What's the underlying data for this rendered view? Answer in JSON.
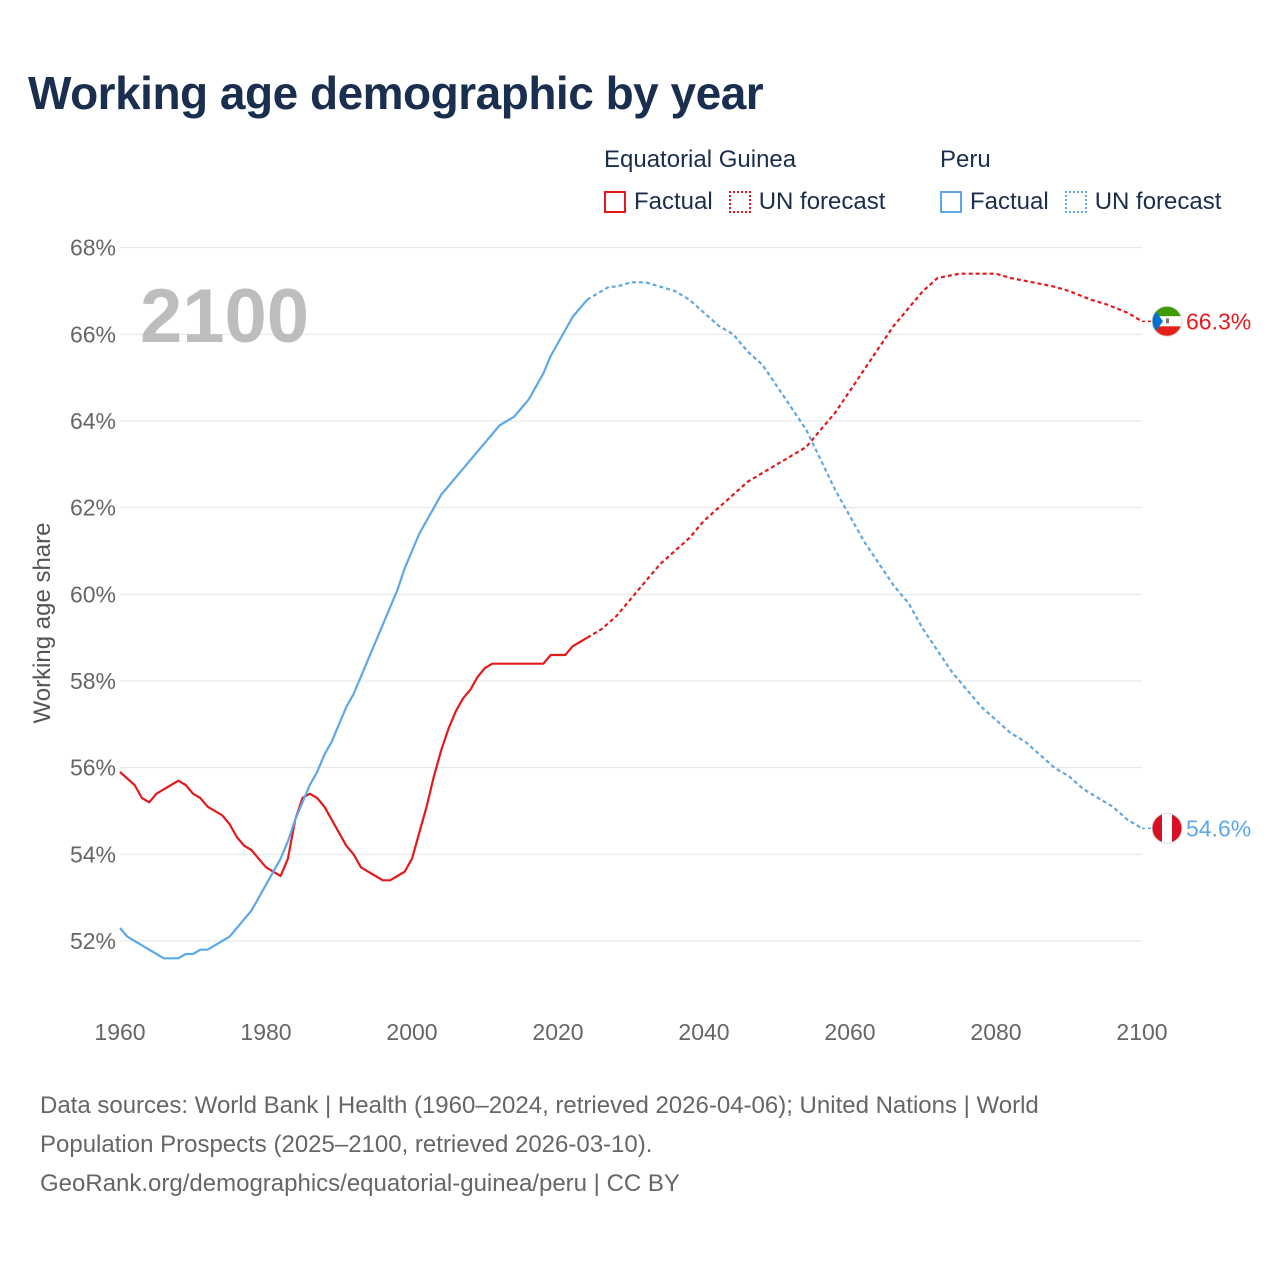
{
  "title": "Working age demographic by year",
  "legend": {
    "groups": [
      {
        "name": "Equatorial Guinea",
        "factual": "Factual",
        "forecast": "UN forecast",
        "color": "#e31a1c"
      },
      {
        "name": "Peru",
        "factual": "Factual",
        "forecast": "UN forecast",
        "color": "#5ea8e8"
      }
    ]
  },
  "footer": {
    "line1": "Data sources: World Bank | Health (1960–2024, retrieved 2026-04-06); United Nations | World",
    "line2": "Population Prospects (2025–2100, retrieved 2026-03-10).",
    "line3": "GeoRank.org/demographics/equatorial-guinea/peru | CC BY"
  },
  "chart_data": {
    "type": "line",
    "title": "Working age demographic by year",
    "xlabel": "",
    "ylabel": "Working age share",
    "xlim": [
      1960,
      2100
    ],
    "ylim": [
      50.5,
      68.5
    ],
    "x_ticks": [
      1960,
      1980,
      2000,
      2020,
      2040,
      2060,
      2080,
      2100
    ],
    "x_tick_labels": [
      "1960",
      "1980",
      "2000",
      "2020",
      "2040",
      "2060",
      "2080",
      "2100"
    ],
    "y_ticks": [
      52,
      54,
      56,
      58,
      60,
      62,
      64,
      66,
      68
    ],
    "y_tick_labels": [
      "52%",
      "54%",
      "56%",
      "58%",
      "60%",
      "62%",
      "64%",
      "66%",
      "68%"
    ],
    "grid": true,
    "current_year_label": "2100",
    "factual_end_year": 2024,
    "series": [
      {
        "name": "Equatorial Guinea",
        "color": "#e31a1c",
        "end_label": "66.3%",
        "flag": "equatorial-guinea-flag",
        "points": [
          [
            1960,
            55.9
          ],
          [
            1962,
            55.6
          ],
          [
            1963,
            55.3
          ],
          [
            1964,
            55.2
          ],
          [
            1965,
            55.4
          ],
          [
            1966,
            55.5
          ],
          [
            1967,
            55.6
          ],
          [
            1968,
            55.7
          ],
          [
            1969,
            55.6
          ],
          [
            1970,
            55.4
          ],
          [
            1971,
            55.3
          ],
          [
            1972,
            55.1
          ],
          [
            1974,
            54.9
          ],
          [
            1975,
            54.7
          ],
          [
            1976,
            54.4
          ],
          [
            1977,
            54.2
          ],
          [
            1978,
            54.1
          ],
          [
            1979,
            53.9
          ],
          [
            1980,
            53.7
          ],
          [
            1981,
            53.6
          ],
          [
            1982,
            53.5
          ],
          [
            1983,
            53.9
          ],
          [
            1984,
            54.8
          ],
          [
            1985,
            55.3
          ],
          [
            1986,
            55.4
          ],
          [
            1987,
            55.3
          ],
          [
            1988,
            55.1
          ],
          [
            1989,
            54.8
          ],
          [
            1990,
            54.5
          ],
          [
            1991,
            54.2
          ],
          [
            1992,
            54.0
          ],
          [
            1993,
            53.7
          ],
          [
            1994,
            53.6
          ],
          [
            1995,
            53.5
          ],
          [
            1996,
            53.4
          ],
          [
            1997,
            53.4
          ],
          [
            1998,
            53.5
          ],
          [
            1999,
            53.6
          ],
          [
            2000,
            53.9
          ],
          [
            2001,
            54.5
          ],
          [
            2002,
            55.1
          ],
          [
            2003,
            55.8
          ],
          [
            2004,
            56.4
          ],
          [
            2005,
            56.9
          ],
          [
            2006,
            57.3
          ],
          [
            2007,
            57.6
          ],
          [
            2008,
            57.8
          ],
          [
            2009,
            58.1
          ],
          [
            2010,
            58.3
          ],
          [
            2011,
            58.4
          ],
          [
            2012,
            58.4
          ],
          [
            2013,
            58.4
          ],
          [
            2014,
            58.4
          ],
          [
            2015,
            58.4
          ],
          [
            2016,
            58.4
          ],
          [
            2017,
            58.4
          ],
          [
            2018,
            58.4
          ],
          [
            2019,
            58.6
          ],
          [
            2020,
            58.6
          ],
          [
            2021,
            58.6
          ],
          [
            2022,
            58.8
          ],
          [
            2023,
            58.9
          ],
          [
            2024,
            59.0
          ],
          [
            2025,
            59.1
          ],
          [
            2026,
            59.2
          ],
          [
            2028,
            59.5
          ],
          [
            2030,
            59.9
          ],
          [
            2032,
            60.3
          ],
          [
            2034,
            60.7
          ],
          [
            2036,
            61.0
          ],
          [
            2038,
            61.3
          ],
          [
            2040,
            61.7
          ],
          [
            2042,
            62.0
          ],
          [
            2044,
            62.3
          ],
          [
            2046,
            62.6
          ],
          [
            2048,
            62.8
          ],
          [
            2050,
            63.0
          ],
          [
            2052,
            63.2
          ],
          [
            2054,
            63.4
          ],
          [
            2056,
            63.8
          ],
          [
            2058,
            64.2
          ],
          [
            2060,
            64.7
          ],
          [
            2062,
            65.2
          ],
          [
            2064,
            65.7
          ],
          [
            2066,
            66.2
          ],
          [
            2068,
            66.6
          ],
          [
            2070,
            67.0
          ],
          [
            2072,
            67.3
          ],
          [
            2075,
            67.4
          ],
          [
            2078,
            67.4
          ],
          [
            2080,
            67.4
          ],
          [
            2082,
            67.3
          ],
          [
            2085,
            67.2
          ],
          [
            2088,
            67.1
          ],
          [
            2090,
            67.0
          ],
          [
            2093,
            66.8
          ],
          [
            2095,
            66.7
          ],
          [
            2098,
            66.5
          ],
          [
            2100,
            66.3
          ]
        ]
      },
      {
        "name": "Peru",
        "color": "#5ea8e8",
        "end_label": "54.6%",
        "flag": "peru-flag",
        "points": [
          [
            1960,
            52.3
          ],
          [
            1961,
            52.1
          ],
          [
            1962,
            52.0
          ],
          [
            1963,
            51.9
          ],
          [
            1964,
            51.8
          ],
          [
            1965,
            51.7
          ],
          [
            1966,
            51.6
          ],
          [
            1967,
            51.6
          ],
          [
            1968,
            51.6
          ],
          [
            1969,
            51.7
          ],
          [
            1970,
            51.7
          ],
          [
            1971,
            51.8
          ],
          [
            1972,
            51.8
          ],
          [
            1973,
            51.9
          ],
          [
            1974,
            52.0
          ],
          [
            1975,
            52.1
          ],
          [
            1976,
            52.3
          ],
          [
            1977,
            52.5
          ],
          [
            1978,
            52.7
          ],
          [
            1979,
            53.0
          ],
          [
            1980,
            53.3
          ],
          [
            1981,
            53.6
          ],
          [
            1982,
            53.9
          ],
          [
            1983,
            54.3
          ],
          [
            1984,
            54.8
          ],
          [
            1985,
            55.2
          ],
          [
            1986,
            55.6
          ],
          [
            1987,
            55.9
          ],
          [
            1988,
            56.3
          ],
          [
            1989,
            56.6
          ],
          [
            1990,
            57.0
          ],
          [
            1991,
            57.4
          ],
          [
            1992,
            57.7
          ],
          [
            1993,
            58.1
          ],
          [
            1994,
            58.5
          ],
          [
            1995,
            58.9
          ],
          [
            1996,
            59.3
          ],
          [
            1997,
            59.7
          ],
          [
            1998,
            60.1
          ],
          [
            1999,
            60.6
          ],
          [
            2000,
            61.0
          ],
          [
            2001,
            61.4
          ],
          [
            2002,
            61.7
          ],
          [
            2003,
            62.0
          ],
          [
            2004,
            62.3
          ],
          [
            2005,
            62.5
          ],
          [
            2006,
            62.7
          ],
          [
            2007,
            62.9
          ],
          [
            2008,
            63.1
          ],
          [
            2009,
            63.3
          ],
          [
            2010,
            63.5
          ],
          [
            2011,
            63.7
          ],
          [
            2012,
            63.9
          ],
          [
            2013,
            64.0
          ],
          [
            2014,
            64.1
          ],
          [
            2015,
            64.3
          ],
          [
            2016,
            64.5
          ],
          [
            2017,
            64.8
          ],
          [
            2018,
            65.1
          ],
          [
            2019,
            65.5
          ],
          [
            2020,
            65.8
          ],
          [
            2021,
            66.1
          ],
          [
            2022,
            66.4
          ],
          [
            2023,
            66.6
          ],
          [
            2024,
            66.8
          ],
          [
            2025,
            66.9
          ],
          [
            2026,
            67.0
          ],
          [
            2027,
            67.1
          ],
          [
            2028,
            67.1
          ],
          [
            2030,
            67.2
          ],
          [
            2032,
            67.2
          ],
          [
            2034,
            67.1
          ],
          [
            2036,
            67.0
          ],
          [
            2038,
            66.8
          ],
          [
            2040,
            66.5
          ],
          [
            2042,
            66.2
          ],
          [
            2044,
            66.0
          ],
          [
            2046,
            65.6
          ],
          [
            2048,
            65.3
          ],
          [
            2050,
            64.8
          ],
          [
            2052,
            64.3
          ],
          [
            2054,
            63.8
          ],
          [
            2056,
            63.1
          ],
          [
            2058,
            62.4
          ],
          [
            2060,
            61.8
          ],
          [
            2062,
            61.2
          ],
          [
            2064,
            60.7
          ],
          [
            2066,
            60.2
          ],
          [
            2068,
            59.8
          ],
          [
            2070,
            59.2
          ],
          [
            2072,
            58.7
          ],
          [
            2074,
            58.2
          ],
          [
            2076,
            57.8
          ],
          [
            2078,
            57.4
          ],
          [
            2080,
            57.1
          ],
          [
            2082,
            56.8
          ],
          [
            2084,
            56.6
          ],
          [
            2086,
            56.3
          ],
          [
            2088,
            56.0
          ],
          [
            2090,
            55.8
          ],
          [
            2092,
            55.5
          ],
          [
            2094,
            55.3
          ],
          [
            2096,
            55.1
          ],
          [
            2098,
            54.8
          ],
          [
            2100,
            54.6
          ]
        ]
      }
    ]
  }
}
